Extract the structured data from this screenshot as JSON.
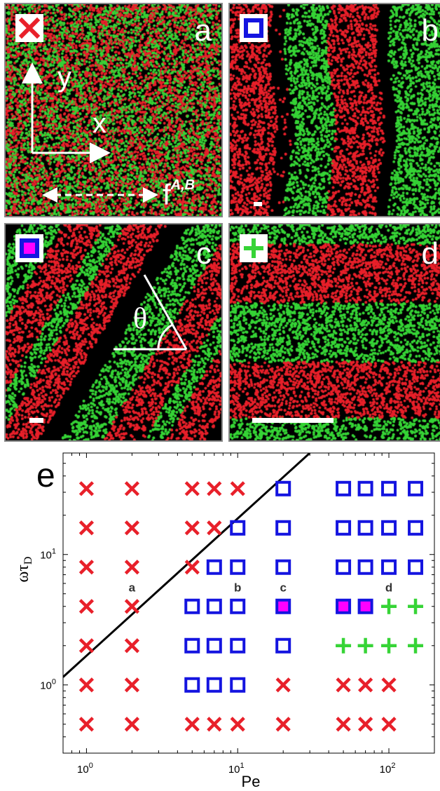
{
  "panels": [
    {
      "label": "a",
      "marker": "cross",
      "pattern": "mixed"
    },
    {
      "label": "b",
      "marker": "square",
      "pattern": "vertical-lanes"
    },
    {
      "label": "c",
      "marker": "square-filled",
      "pattern": "tilted-lanes"
    },
    {
      "label": "d",
      "marker": "plus",
      "pattern": "horizontal-lanes"
    }
  ],
  "panel_a_annotations": {
    "y_axis": "y",
    "x_axis": "x",
    "force": "f",
    "force_sup": "A,B"
  },
  "panel_c_annotations": {
    "angle": "θ"
  },
  "colors": {
    "red": "#e8202a",
    "green": "#36d436",
    "blue": "#1414e0",
    "magenta": "#ff00ff",
    "black": "#000000"
  },
  "chart_data": {
    "type": "scatter",
    "panel_label": "e",
    "xlabel": "Pe",
    "ylabel": "ωτ_D",
    "xscale": "log",
    "yscale": "log",
    "xlim": [
      0.7,
      200
    ],
    "ylim": [
      0.3,
      60
    ],
    "xticks": [
      {
        "value": 1,
        "base": "10",
        "exp": "0"
      },
      {
        "value": 10,
        "base": "10",
        "exp": "1"
      },
      {
        "value": 100,
        "base": "10",
        "exp": "2"
      }
    ],
    "yticks": [
      {
        "value": 1,
        "base": "10",
        "exp": "0"
      },
      {
        "value": 10,
        "base": "10",
        "exp": "1"
      }
    ],
    "rows_y": [
      0.5,
      1,
      2,
      4,
      8,
      16,
      32
    ],
    "points": [
      {
        "x": 1,
        "y": 32,
        "m": "cross"
      },
      {
        "x": 2,
        "y": 32,
        "m": "cross"
      },
      {
        "x": 5,
        "y": 32,
        "m": "cross"
      },
      {
        "x": 7,
        "y": 32,
        "m": "cross"
      },
      {
        "x": 10,
        "y": 32,
        "m": "cross"
      },
      {
        "x": 20,
        "y": 32,
        "m": "square"
      },
      {
        "x": 50,
        "y": 32,
        "m": "square"
      },
      {
        "x": 70,
        "y": 32,
        "m": "square"
      },
      {
        "x": 100,
        "y": 32,
        "m": "square"
      },
      {
        "x": 150,
        "y": 32,
        "m": "square"
      },
      {
        "x": 1,
        "y": 16,
        "m": "cross"
      },
      {
        "x": 2,
        "y": 16,
        "m": "cross"
      },
      {
        "x": 5,
        "y": 16,
        "m": "cross"
      },
      {
        "x": 7,
        "y": 16,
        "m": "cross"
      },
      {
        "x": 10,
        "y": 16,
        "m": "square"
      },
      {
        "x": 20,
        "y": 16,
        "m": "square"
      },
      {
        "x": 50,
        "y": 16,
        "m": "square"
      },
      {
        "x": 70,
        "y": 16,
        "m": "square"
      },
      {
        "x": 100,
        "y": 16,
        "m": "square"
      },
      {
        "x": 150,
        "y": 16,
        "m": "square"
      },
      {
        "x": 1,
        "y": 8,
        "m": "cross"
      },
      {
        "x": 2,
        "y": 8,
        "m": "cross"
      },
      {
        "x": 5,
        "y": 8,
        "m": "cross"
      },
      {
        "x": 7,
        "y": 8,
        "m": "square"
      },
      {
        "x": 10,
        "y": 8,
        "m": "square"
      },
      {
        "x": 20,
        "y": 8,
        "m": "square"
      },
      {
        "x": 50,
        "y": 8,
        "m": "square"
      },
      {
        "x": 70,
        "y": 8,
        "m": "square"
      },
      {
        "x": 100,
        "y": 8,
        "m": "square"
      },
      {
        "x": 150,
        "y": 8,
        "m": "square"
      },
      {
        "x": 1,
        "y": 4,
        "m": "cross"
      },
      {
        "x": 2,
        "y": 4,
        "m": "cross"
      },
      {
        "x": 5,
        "y": 4,
        "m": "square"
      },
      {
        "x": 7,
        "y": 4,
        "m": "square"
      },
      {
        "x": 10,
        "y": 4,
        "m": "square"
      },
      {
        "x": 20,
        "y": 4,
        "m": "square-filled"
      },
      {
        "x": 50,
        "y": 4,
        "m": "square-filled"
      },
      {
        "x": 70,
        "y": 4,
        "m": "square-filled"
      },
      {
        "x": 100,
        "y": 4,
        "m": "plus"
      },
      {
        "x": 150,
        "y": 4,
        "m": "plus"
      },
      {
        "x": 1,
        "y": 2,
        "m": "cross"
      },
      {
        "x": 2,
        "y": 2,
        "m": "cross"
      },
      {
        "x": 5,
        "y": 2,
        "m": "square"
      },
      {
        "x": 7,
        "y": 2,
        "m": "square"
      },
      {
        "x": 10,
        "y": 2,
        "m": "square"
      },
      {
        "x": 20,
        "y": 2,
        "m": "square"
      },
      {
        "x": 50,
        "y": 2,
        "m": "plus"
      },
      {
        "x": 70,
        "y": 2,
        "m": "plus"
      },
      {
        "x": 100,
        "y": 2,
        "m": "plus"
      },
      {
        "x": 150,
        "y": 2,
        "m": "plus"
      },
      {
        "x": 1,
        "y": 1,
        "m": "cross"
      },
      {
        "x": 2,
        "y": 1,
        "m": "cross"
      },
      {
        "x": 5,
        "y": 1,
        "m": "square"
      },
      {
        "x": 7,
        "y": 1,
        "m": "square"
      },
      {
        "x": 10,
        "y": 1,
        "m": "square"
      },
      {
        "x": 20,
        "y": 1,
        "m": "cross"
      },
      {
        "x": 50,
        "y": 1,
        "m": "cross"
      },
      {
        "x": 70,
        "y": 1,
        "m": "cross"
      },
      {
        "x": 100,
        "y": 1,
        "m": "cross"
      },
      {
        "x": 1,
        "y": 0.5,
        "m": "cross"
      },
      {
        "x": 2,
        "y": 0.5,
        "m": "cross"
      },
      {
        "x": 5,
        "y": 0.5,
        "m": "cross"
      },
      {
        "x": 7,
        "y": 0.5,
        "m": "cross"
      },
      {
        "x": 10,
        "y": 0.5,
        "m": "cross"
      },
      {
        "x": 20,
        "y": 0.5,
        "m": "cross"
      },
      {
        "x": 50,
        "y": 0.5,
        "m": "cross"
      },
      {
        "x": 70,
        "y": 0.5,
        "m": "cross"
      },
      {
        "x": 100,
        "y": 0.5,
        "m": "cross"
      }
    ],
    "annotations": [
      {
        "text": "a",
        "x": 2,
        "y": 5.6
      },
      {
        "text": "b",
        "x": 10,
        "y": 5.6
      },
      {
        "text": "c",
        "x": 20,
        "y": 5.6
      },
      {
        "text": "d",
        "x": 100,
        "y": 5.6
      }
    ],
    "line": {
      "x": [
        0.7,
        30
      ],
      "y": [
        1.15,
        60
      ]
    }
  }
}
